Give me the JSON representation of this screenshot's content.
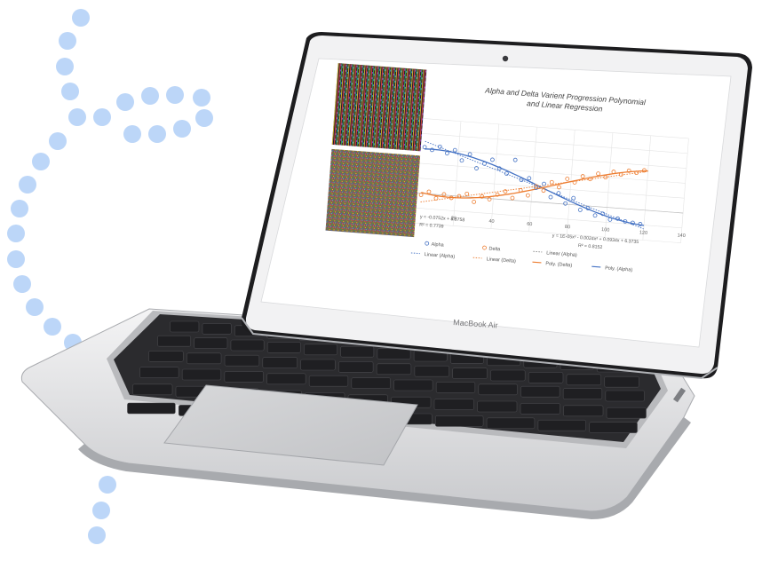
{
  "laptop": {
    "brand_label": "MacBook Air"
  },
  "chart_data": {
    "type": "scatter",
    "title": "Alpha and Delta Varient Progression Polynomial and Linear Regression",
    "xlabel": "",
    "ylabel": "",
    "xlim": [
      0,
      140
    ],
    "ylim": [
      -4,
      10
    ],
    "x_ticks": [
      "20",
      "40",
      "60",
      "80",
      "100",
      "120",
      "140"
    ],
    "y_ticks": [
      "10",
      "8",
      "6",
      "4",
      "2",
      "0",
      "-2",
      "-4"
    ],
    "grid": true,
    "legend_position": "bottom",
    "series": [
      {
        "name": "Alpha",
        "marker": "circle-open",
        "color": "#4472c4",
        "x": [
          2,
          6,
          10,
          14,
          18,
          22,
          26,
          30,
          34,
          38,
          42,
          46,
          50,
          54,
          58,
          62,
          66,
          70,
          74,
          78,
          82,
          86,
          90,
          94,
          98,
          102,
          106,
          110,
          114,
          118
        ],
        "y": [
          6.2,
          5.9,
          6.4,
          5.6,
          6.1,
          4.8,
          5.7,
          3.9,
          4.6,
          5.2,
          4.1,
          3.5,
          5.4,
          2.8,
          3.1,
          1.9,
          2.5,
          0.8,
          1.4,
          0.1,
          0.9,
          -0.6,
          -0.3,
          -1.2,
          -0.9,
          -1.6,
          -1.4,
          -1.7,
          -1.8,
          -1.9
        ]
      },
      {
        "name": "Delta",
        "marker": "circle-open",
        "color": "#ed7d31",
        "x": [
          2,
          6,
          10,
          14,
          18,
          22,
          26,
          30,
          34,
          38,
          42,
          46,
          50,
          54,
          58,
          62,
          66,
          70,
          74,
          78,
          82,
          86,
          90,
          94,
          98,
          102,
          106,
          110,
          114,
          118
        ],
        "y": [
          -0.2,
          0.3,
          -0.5,
          0.1,
          -0.3,
          0.0,
          0.4,
          -0.6,
          0.2,
          -0.1,
          0.6,
          1.1,
          0.3,
          1.4,
          0.8,
          2.1,
          1.6,
          2.8,
          2.2,
          3.4,
          3.0,
          3.9,
          3.6,
          4.4,
          4.0,
          4.8,
          4.5,
          5.1,
          4.9,
          5.3
        ]
      }
    ],
    "trendlines": [
      {
        "name": "Linear (Alpha)",
        "style": "dotted",
        "color": "#4472c4",
        "equation": "y = -0.0752x + 8.5758",
        "r2": "R² = 0.7739"
      },
      {
        "name": "Linear (Delta)",
        "style": "dotted",
        "color": "#ed7d31"
      },
      {
        "name": "Linear (Alpha)",
        "style": "dotted",
        "color": "#7f7f7f"
      },
      {
        "name": "Poly. (Delta)",
        "style": "solid",
        "color": "#ed7d31"
      },
      {
        "name": "Poly. (Alpha)",
        "style": "solid",
        "color": "#4472c4",
        "equation": "y = 1E-05x³ - 0.0024x² + 0.0934x + 6.3735",
        "r2": "R² = 0.8152"
      }
    ]
  }
}
